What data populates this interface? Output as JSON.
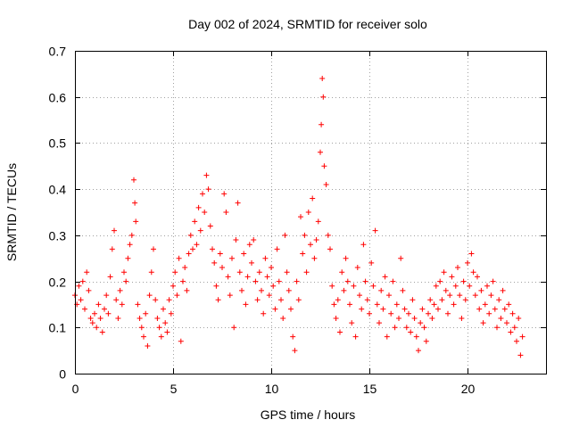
{
  "chart_data": {
    "type": "scatter",
    "title": "Day 002 of 2024, SRMTID for receiver solo",
    "xlabel": "GPS time / hours",
    "ylabel": "SRMTID / TECUs",
    "xlim": [
      0,
      24
    ],
    "ylim": [
      0,
      0.7
    ],
    "xticks": [
      0,
      5,
      10,
      15,
      20
    ],
    "xtick_labels": [
      "0",
      "5",
      "10",
      "15",
      "20"
    ],
    "yticks": [
      0,
      0.1,
      0.2,
      0.3,
      0.4,
      0.5,
      0.6,
      0.7
    ],
    "ytick_labels": [
      "0",
      "0.1",
      "0.2",
      "0.3",
      "0.4",
      "0.5",
      "0.6",
      "0.7"
    ],
    "grid": true,
    "marker": "+",
    "color": "#ff0000",
    "series": [
      {
        "name": "SRMTID",
        "points": [
          [
            0.0,
            0.17
          ],
          [
            0.1,
            0.15
          ],
          [
            0.2,
            0.19
          ],
          [
            0.3,
            0.16
          ],
          [
            0.4,
            0.2
          ],
          [
            0.5,
            0.14
          ],
          [
            0.6,
            0.22
          ],
          [
            0.7,
            0.18
          ],
          [
            0.8,
            0.12
          ],
          [
            0.9,
            0.11
          ],
          [
            1.0,
            0.13
          ],
          [
            1.1,
            0.1
          ],
          [
            1.2,
            0.15
          ],
          [
            1.3,
            0.12
          ],
          [
            1.4,
            0.09
          ],
          [
            1.5,
            0.14
          ],
          [
            1.6,
            0.17
          ],
          [
            1.7,
            0.13
          ],
          [
            1.8,
            0.21
          ],
          [
            1.9,
            0.27
          ],
          [
            2.0,
            0.31
          ],
          [
            2.1,
            0.16
          ],
          [
            2.2,
            0.12
          ],
          [
            2.3,
            0.18
          ],
          [
            2.4,
            0.15
          ],
          [
            2.5,
            0.22
          ],
          [
            2.6,
            0.2
          ],
          [
            2.7,
            0.25
          ],
          [
            2.8,
            0.28
          ],
          [
            2.9,
            0.3
          ],
          [
            3.0,
            0.42
          ],
          [
            3.05,
            0.37
          ],
          [
            3.1,
            0.33
          ],
          [
            3.2,
            0.15
          ],
          [
            3.3,
            0.12
          ],
          [
            3.4,
            0.1
          ],
          [
            3.5,
            0.08
          ],
          [
            3.6,
            0.13
          ],
          [
            3.7,
            0.06
          ],
          [
            3.8,
            0.17
          ],
          [
            3.9,
            0.22
          ],
          [
            4.0,
            0.27
          ],
          [
            4.1,
            0.16
          ],
          [
            4.2,
            0.12
          ],
          [
            4.3,
            0.1
          ],
          [
            4.4,
            0.08
          ],
          [
            4.5,
            0.14
          ],
          [
            4.6,
            0.11
          ],
          [
            4.7,
            0.09
          ],
          [
            4.8,
            0.16
          ],
          [
            4.9,
            0.13
          ],
          [
            5.0,
            0.19
          ],
          [
            5.1,
            0.22
          ],
          [
            5.2,
            0.17
          ],
          [
            5.3,
            0.25
          ],
          [
            5.4,
            0.07
          ],
          [
            5.5,
            0.2
          ],
          [
            5.6,
            0.23
          ],
          [
            5.7,
            0.18
          ],
          [
            5.8,
            0.26
          ],
          [
            5.9,
            0.3
          ],
          [
            6.0,
            0.27
          ],
          [
            6.1,
            0.33
          ],
          [
            6.2,
            0.28
          ],
          [
            6.3,
            0.36
          ],
          [
            6.4,
            0.31
          ],
          [
            6.5,
            0.39
          ],
          [
            6.6,
            0.35
          ],
          [
            6.7,
            0.43
          ],
          [
            6.8,
            0.4
          ],
          [
            6.9,
            0.32
          ],
          [
            7.0,
            0.27
          ],
          [
            7.1,
            0.24
          ],
          [
            7.2,
            0.19
          ],
          [
            7.3,
            0.16
          ],
          [
            7.4,
            0.26
          ],
          [
            7.5,
            0.23
          ],
          [
            7.6,
            0.39
          ],
          [
            7.7,
            0.35
          ],
          [
            7.8,
            0.21
          ],
          [
            7.9,
            0.17
          ],
          [
            8.0,
            0.25
          ],
          [
            8.1,
            0.1
          ],
          [
            8.2,
            0.29
          ],
          [
            8.3,
            0.37
          ],
          [
            8.4,
            0.22
          ],
          [
            8.5,
            0.18
          ],
          [
            8.6,
            0.26
          ],
          [
            8.7,
            0.15
          ],
          [
            8.8,
            0.21
          ],
          [
            8.9,
            0.28
          ],
          [
            9.0,
            0.24
          ],
          [
            9.1,
            0.29
          ],
          [
            9.2,
            0.2
          ],
          [
            9.3,
            0.16
          ],
          [
            9.4,
            0.22
          ],
          [
            9.5,
            0.18
          ],
          [
            9.6,
            0.13
          ],
          [
            9.7,
            0.25
          ],
          [
            9.8,
            0.21
          ],
          [
            9.9,
            0.17
          ],
          [
            10.0,
            0.23
          ],
          [
            10.1,
            0.19
          ],
          [
            10.2,
            0.14
          ],
          [
            10.3,
            0.27
          ],
          [
            10.4,
            0.2
          ],
          [
            10.5,
            0.16
          ],
          [
            10.6,
            0.12
          ],
          [
            10.7,
            0.3
          ],
          [
            10.8,
            0.22
          ],
          [
            10.9,
            0.18
          ],
          [
            11.0,
            0.14
          ],
          [
            11.1,
            0.08
          ],
          [
            11.2,
            0.05
          ],
          [
            11.3,
            0.2
          ],
          [
            11.4,
            0.16
          ],
          [
            11.5,
            0.34
          ],
          [
            11.6,
            0.26
          ],
          [
            11.7,
            0.3
          ],
          [
            11.8,
            0.22
          ],
          [
            11.9,
            0.35
          ],
          [
            12.0,
            0.28
          ],
          [
            12.1,
            0.38
          ],
          [
            12.2,
            0.25
          ],
          [
            12.3,
            0.29
          ],
          [
            12.4,
            0.33
          ],
          [
            12.5,
            0.48
          ],
          [
            12.55,
            0.54
          ],
          [
            12.6,
            0.64
          ],
          [
            12.65,
            0.6
          ],
          [
            12.7,
            0.45
          ],
          [
            12.8,
            0.41
          ],
          [
            12.9,
            0.3
          ],
          [
            13.0,
            0.27
          ],
          [
            13.1,
            0.19
          ],
          [
            13.2,
            0.15
          ],
          [
            13.3,
            0.12
          ],
          [
            13.4,
            0.16
          ],
          [
            13.5,
            0.09
          ],
          [
            13.6,
            0.22
          ],
          [
            13.7,
            0.18
          ],
          [
            13.8,
            0.25
          ],
          [
            13.9,
            0.2
          ],
          [
            14.0,
            0.15
          ],
          [
            14.1,
            0.11
          ],
          [
            14.2,
            0.19
          ],
          [
            14.3,
            0.08
          ],
          [
            14.4,
            0.23
          ],
          [
            14.5,
            0.17
          ],
          [
            14.6,
            0.14
          ],
          [
            14.7,
            0.28
          ],
          [
            14.8,
            0.2
          ],
          [
            14.9,
            0.16
          ],
          [
            15.0,
            0.13
          ],
          [
            15.1,
            0.24
          ],
          [
            15.2,
            0.19
          ],
          [
            15.3,
            0.31
          ],
          [
            15.4,
            0.15
          ],
          [
            15.5,
            0.11
          ],
          [
            15.6,
            0.18
          ],
          [
            15.7,
            0.14
          ],
          [
            15.8,
            0.21
          ],
          [
            15.9,
            0.08
          ],
          [
            16.0,
            0.17
          ],
          [
            16.1,
            0.13
          ],
          [
            16.2,
            0.2
          ],
          [
            16.3,
            0.1
          ],
          [
            16.4,
            0.15
          ],
          [
            16.5,
            0.12
          ],
          [
            16.6,
            0.25
          ],
          [
            16.7,
            0.18
          ],
          [
            16.8,
            0.14
          ],
          [
            16.9,
            0.1
          ],
          [
            17.0,
            0.13
          ],
          [
            17.1,
            0.09
          ],
          [
            17.2,
            0.16
          ],
          [
            17.3,
            0.12
          ],
          [
            17.4,
            0.08
          ],
          [
            17.5,
            0.05
          ],
          [
            17.6,
            0.11
          ],
          [
            17.7,
            0.14
          ],
          [
            17.8,
            0.1
          ],
          [
            17.9,
            0.07
          ],
          [
            18.0,
            0.13
          ],
          [
            18.1,
            0.16
          ],
          [
            18.2,
            0.12
          ],
          [
            18.3,
            0.15
          ],
          [
            18.4,
            0.19
          ],
          [
            18.5,
            0.14
          ],
          [
            18.6,
            0.2
          ],
          [
            18.7,
            0.16
          ],
          [
            18.8,
            0.22
          ],
          [
            18.9,
            0.18
          ],
          [
            19.0,
            0.13
          ],
          [
            19.1,
            0.17
          ],
          [
            19.2,
            0.21
          ],
          [
            19.3,
            0.15
          ],
          [
            19.4,
            0.19
          ],
          [
            19.5,
            0.23
          ],
          [
            19.6,
            0.17
          ],
          [
            19.7,
            0.12
          ],
          [
            19.8,
            0.2
          ],
          [
            19.9,
            0.16
          ],
          [
            20.0,
            0.24
          ],
          [
            20.1,
            0.19
          ],
          [
            20.2,
            0.26
          ],
          [
            20.3,
            0.22
          ],
          [
            20.4,
            0.17
          ],
          [
            20.5,
            0.21
          ],
          [
            20.6,
            0.14
          ],
          [
            20.7,
            0.18
          ],
          [
            20.8,
            0.11
          ],
          [
            20.9,
            0.15
          ],
          [
            21.0,
            0.19
          ],
          [
            21.1,
            0.13
          ],
          [
            21.2,
            0.17
          ],
          [
            21.3,
            0.2
          ],
          [
            21.4,
            0.14
          ],
          [
            21.5,
            0.1
          ],
          [
            21.6,
            0.16
          ],
          [
            21.7,
            0.12
          ],
          [
            21.8,
            0.18
          ],
          [
            21.9,
            0.14
          ],
          [
            22.0,
            0.11
          ],
          [
            22.1,
            0.15
          ],
          [
            22.2,
            0.09
          ],
          [
            22.3,
            0.13
          ],
          [
            22.4,
            0.1
          ],
          [
            22.5,
            0.07
          ],
          [
            22.6,
            0.12
          ],
          [
            22.7,
            0.04
          ],
          [
            22.8,
            0.08
          ]
        ]
      }
    ]
  }
}
